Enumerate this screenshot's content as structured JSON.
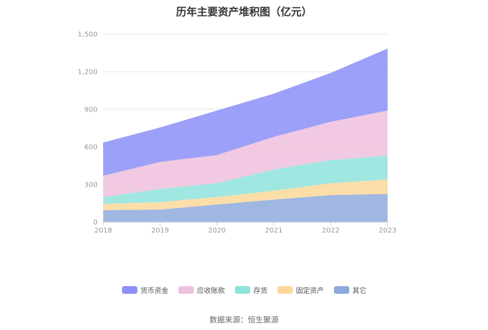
{
  "chart_data": {
    "type": "area",
    "stacked": true,
    "title": "历年主要资产堆积图（亿元）",
    "xlabel": "",
    "ylabel": "",
    "categories": [
      "2018",
      "2019",
      "2020",
      "2021",
      "2022",
      "2023"
    ],
    "ylim": [
      0,
      1500
    ],
    "yticks": [
      0,
      300,
      600,
      900,
      1200,
      1500
    ],
    "ytick_labels": [
      "0",
      "300",
      "600",
      "900",
      "1,200",
      "1,500"
    ],
    "series": [
      {
        "name": "其它",
        "color": "#8faadc",
        "values": [
          95,
          100,
          140,
          180,
          215,
          225
        ]
      },
      {
        "name": "固定资产",
        "color": "#fbd89a",
        "values": [
          50,
          60,
          60,
          70,
          95,
          115
        ]
      },
      {
        "name": "存货",
        "color": "#8fe3dd",
        "values": [
          55,
          105,
          110,
          170,
          185,
          190
        ]
      },
      {
        "name": "应收账款",
        "color": "#efc0dd",
        "values": [
          170,
          215,
          225,
          260,
          305,
          360
        ]
      },
      {
        "name": "货币资金",
        "color": "#8b8ff7",
        "values": [
          265,
          275,
          355,
          345,
          390,
          495
        ]
      }
    ],
    "legend_order": [
      "货币资金",
      "应收账款",
      "存货",
      "固定资产",
      "其它"
    ],
    "legend_position": "bottom"
  },
  "source": "数据来源：恒生聚源"
}
